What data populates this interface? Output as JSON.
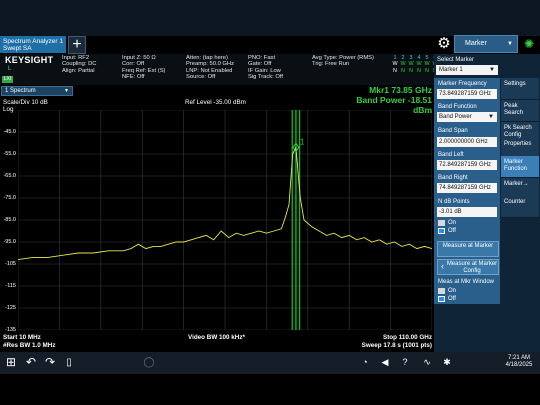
{
  "window": {
    "tab_line1": "Spectrum Analyzer 1",
    "tab_line2": "Swept SA",
    "add_tab": "+",
    "menu_title": "Marker"
  },
  "brand": {
    "name": "KEYSIGHT",
    "mode": "L",
    "lxi": "LXI"
  },
  "info": {
    "col1": [
      "Input: RF2",
      "Coupling: DC",
      "Align: Partial"
    ],
    "col2": [
      "Input Z: 50 Ω",
      "Corr: Off",
      "Freq Ref: Ext (S)",
      "NFE: Off"
    ],
    "col3": [
      "Atten: (tap here)",
      "Preamp: 50.0 GHz",
      "LNP: Not Enabled",
      "Source: Off"
    ],
    "col4": [
      "PNO: Fast",
      "Gate: Off",
      "IF Gain: Low",
      "Sig Track: Off"
    ],
    "col5": [
      "Avg Type: Power (RMS)",
      "Trig: Free Run"
    ]
  },
  "trace_table": {
    "numbers": [
      "1",
      "2",
      "3",
      "4",
      "5",
      "6"
    ],
    "row2": [
      "W",
      "W",
      "W",
      "W",
      "W",
      "W"
    ],
    "row3": [
      "N",
      "N",
      "N",
      "N",
      "N",
      "N"
    ]
  },
  "plot": {
    "window_select": "1 Spectrum",
    "scale": "Scale/Div 10 dB",
    "log": "Log",
    "ref_level": "Ref Level -35.00 dBm",
    "mkr_line1": "Mkr1  73.85 GHz",
    "mkr_line2": "Band Power  -18.51 dBm",
    "marker_label": "1",
    "y_ticks": [
      "-45.0",
      "-55.0",
      "-65.0",
      "-75.0",
      "-85.0",
      "-95.0",
      "-105",
      "-115",
      "-125",
      "-135"
    ],
    "start": "Start 10 MHz",
    "res_bw": "#Res BW 1.0 MHz",
    "video_bw": "Video BW 100 kHz*",
    "stop": "Stop 110.00 GHz",
    "sweep": "Sweep 17.8 s (1001 pts)"
  },
  "chart_data": {
    "type": "line",
    "xlabel": "",
    "ylabel": "",
    "x_range_ghz": [
      0.01,
      110
    ],
    "ylim": [
      -135,
      -35
    ],
    "x": [
      0,
      4,
      8,
      12,
      16,
      20,
      24,
      28,
      30,
      32,
      34,
      36,
      38,
      40,
      42,
      44,
      46,
      48,
      50,
      52,
      54,
      56,
      58,
      60,
      62,
      64,
      66,
      68,
      70,
      71,
      72,
      73,
      73.85,
      75,
      76,
      78,
      80,
      82,
      84,
      86,
      88,
      90,
      92,
      94,
      96,
      98,
      100,
      102,
      104,
      106,
      108,
      110
    ],
    "y": [
      -103,
      -102,
      -102,
      -101,
      -100,
      -100,
      -99,
      -99,
      -98,
      -96,
      -98,
      -97,
      -97,
      -96,
      -95,
      -95,
      -94,
      -93,
      -92,
      -94,
      -90,
      -93,
      -91,
      -92,
      -91,
      -90,
      -91,
      -90,
      -89,
      -84,
      -78,
      -55,
      -52,
      -75,
      -85,
      -88,
      -90,
      -92,
      -91,
      -93,
      -92,
      -94,
      -93,
      -95,
      -94,
      -96,
      -95,
      -97,
      -96,
      -98,
      -97,
      -98
    ],
    "band_left_ghz": 72.849287159,
    "band_right_ghz": 74.849287159,
    "marker_x_ghz": 73.85,
    "grid": true
  },
  "right_panel": {
    "select_marker_label": "Select Marker",
    "select_marker_value": "Marker 1",
    "marker_freq_label": "Marker Frequency",
    "marker_freq_value": "73.849287159 GHz",
    "band_function_label": "Band Function",
    "band_function_value": "Band Power",
    "band_span_label": "Band Span",
    "band_span_value": "2.000000000 GHz",
    "band_left_label": "Band Left",
    "band_left_value": "72.849287159 GHz",
    "band_right_label": "Band Right",
    "band_right_value": "74.849287159 GHz",
    "ndb_label": "N dB Points",
    "ndb_value": "-3.01 dB",
    "on": "On",
    "off": "Off",
    "measure_at_marker": "Measure at Marker",
    "measure_at_marker_config": "Measure at Marker Config",
    "meas_at_mkr_window": "Meas at Mkr Window",
    "on2": "On",
    "off2": "Off"
  },
  "side_tabs": [
    "Settings",
    "Peak Search",
    "Pk Search Config",
    "Properties",
    "Marker Function",
    "Marker→",
    "Counter"
  ],
  "taskbar": {
    "time": "7:21 AM",
    "date": "4/18/2025"
  }
}
